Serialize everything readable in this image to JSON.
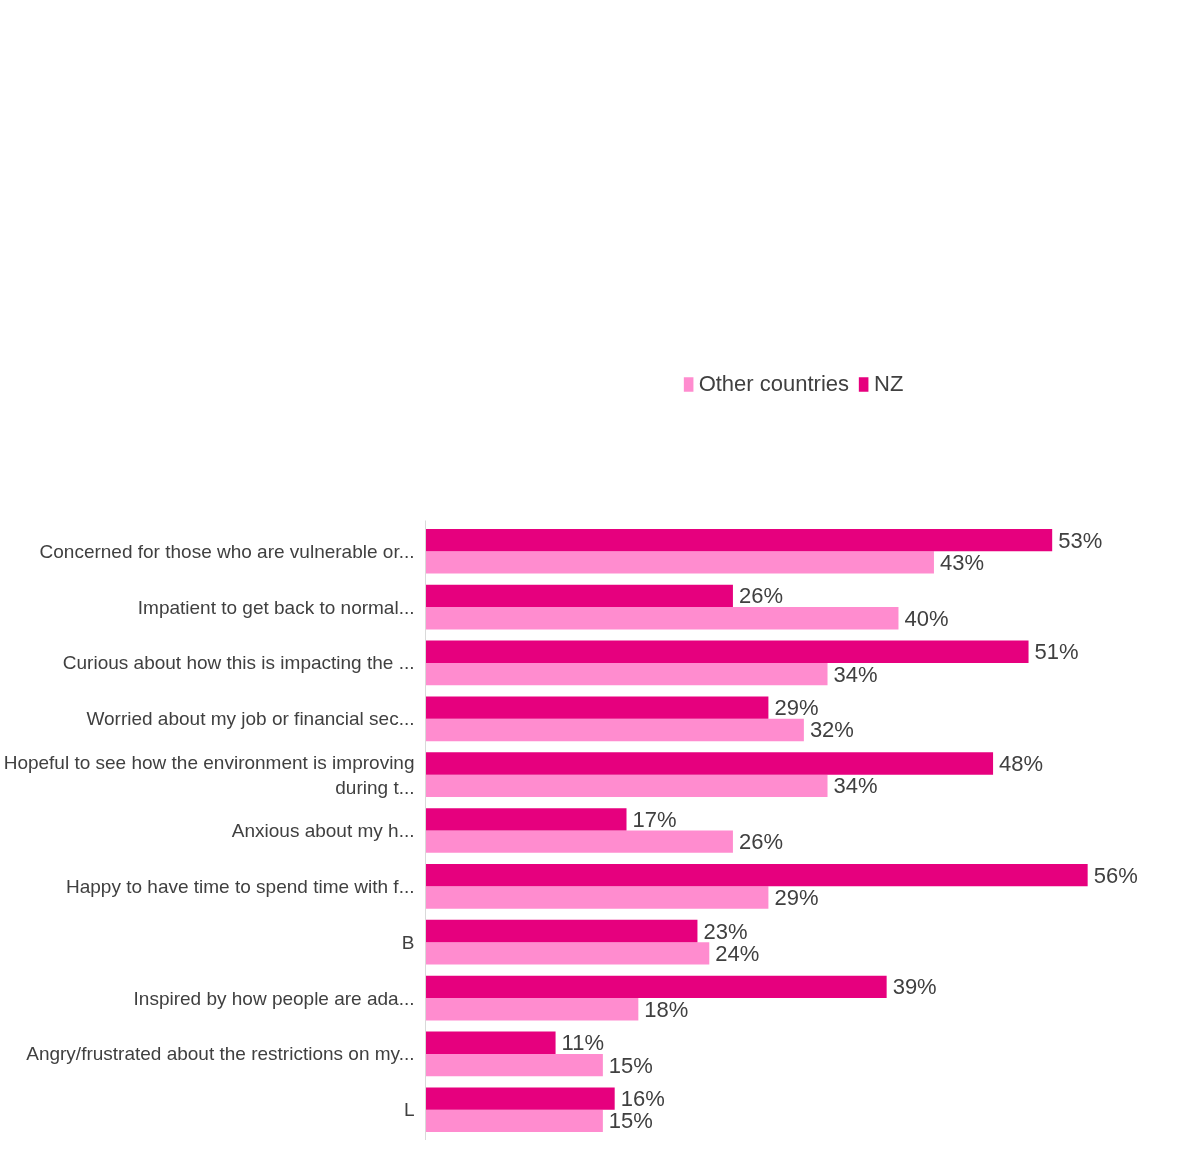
{
  "chart_data": {
    "type": "bar",
    "orientation": "horizontal",
    "legend": "top",
    "grid": false,
    "categories": [
      "Concerned for those who are vulnerable or...",
      "Impatient to get back to normal...",
      "Curious about how this is impacting the ...",
      "Worried about my job or financial sec...",
      "Hopeful to see how the environment is improving during t...",
      "Anxious about my h...",
      "Happy to have time to spend time with f...",
      "B",
      "Inspired by how people are ada...",
      "Angry/frustrated about the restrictions on my...",
      "L"
    ],
    "series": [
      {
        "name": "Other countries",
        "color": "#ff8ccf",
        "values": [
          43,
          40,
          34,
          32,
          34,
          26,
          29,
          24,
          18,
          15,
          15
        ],
        "value_labels": [
          "43%",
          "40%",
          "34%",
          "32%",
          "34%",
          "26%",
          "29%",
          "24%",
          "18%",
          "15%",
          "15%"
        ]
      },
      {
        "name": "NZ",
        "color": "#e6007e",
        "values": [
          53,
          26,
          51,
          29,
          48,
          17,
          56,
          23,
          39,
          11,
          16
        ],
        "value_labels": [
          "53%",
          "26%",
          "51%",
          "29%",
          "48%",
          "17%",
          "56%",
          "23%",
          "39%",
          "11%",
          "16%"
        ]
      }
    ]
  }
}
